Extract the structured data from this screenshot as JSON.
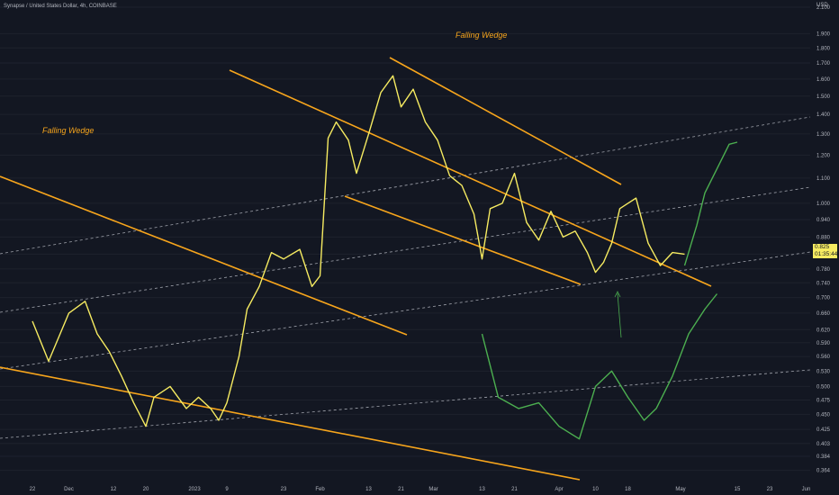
{
  "header": {
    "title": "Synapse / United States Dollar, 4h, COINBASE"
  },
  "price_tag": {
    "price": "0.825",
    "countdown": "01:35:44"
  },
  "annotations": {
    "wedge_1": "Falling Wedge",
    "wedge_2": "Falling Wedge"
  },
  "colors": {
    "background": "#131722",
    "price": "#f6eb61",
    "projection": "#4caf50",
    "wedge_lines": "#f7a51c",
    "dashed_channel": "#d1d4dc",
    "axis_text": "#b2b5be"
  },
  "chart_data": {
    "type": "line",
    "title": "Synapse / United States Dollar, 4h, COINBASE",
    "ylabel": "USD",
    "y_scale": "log",
    "ylim": [
      0.355,
      2.1
    ],
    "y_ticks": [
      "2.100",
      "1.900",
      "1.800",
      "1.700",
      "1.600",
      "1.500",
      "1.400",
      "1.300",
      "1.200",
      "1.100",
      "1.000",
      "0.940",
      "0.880",
      "0.825",
      "0.780",
      "0.740",
      "0.700",
      "0.660",
      "0.620",
      "0.590",
      "0.560",
      "0.530",
      "0.500",
      "0.475",
      "0.450",
      "0.425",
      "0.403",
      "0.384",
      "0.364"
    ],
    "x_ticks": [
      "22",
      "Dec",
      "12",
      "20",
      "2023",
      "9",
      "23",
      "Feb",
      "13",
      "21",
      "Mar",
      "13",
      "21",
      "Apr",
      "10",
      "18",
      "May",
      "15",
      "23",
      "Jun"
    ],
    "series": [
      {
        "style": "solid",
        "values": [
          [
            "2022-11-22",
            0.64
          ],
          [
            "2022-11-26",
            0.55
          ],
          [
            "2022-12-01",
            0.66
          ],
          [
            "2022-12-05",
            0.69
          ],
          [
            "2022-12-08",
            0.61
          ],
          [
            "2022-12-11",
            0.57
          ],
          [
            "2022-12-14",
            0.52
          ],
          [
            "2022-12-17",
            0.47
          ],
          [
            "2022-12-20",
            0.43
          ],
          [
            "2022-12-22",
            0.48
          ],
          [
            "2022-12-26",
            0.5
          ],
          [
            "2022-12-30",
            0.46
          ],
          [
            "2023-01-02",
            0.48
          ],
          [
            "2023-01-05",
            0.46
          ],
          [
            "2023-01-07",
            0.44
          ],
          [
            "2023-01-09",
            0.47
          ],
          [
            "2023-01-12",
            0.56
          ],
          [
            "2023-01-14",
            0.67
          ],
          [
            "2023-01-17",
            0.73
          ],
          [
            "2023-01-20",
            0.83
          ],
          [
            "2023-01-23",
            0.81
          ],
          [
            "2023-01-27",
            0.84
          ],
          [
            "2023-01-30",
            0.73
          ],
          [
            "2023-02-01",
            0.76
          ],
          [
            "2023-02-03",
            1.28
          ],
          [
            "2023-02-05",
            1.36
          ],
          [
            "2023-02-08",
            1.27
          ],
          [
            "2023-02-10",
            1.12
          ],
          [
            "2023-02-13",
            1.3
          ],
          [
            "2023-02-16",
            1.52
          ],
          [
            "2023-02-19",
            1.62
          ],
          [
            "2023-02-21",
            1.44
          ],
          [
            "2023-02-24",
            1.54
          ],
          [
            "2023-02-27",
            1.36
          ],
          [
            "2023-03-02",
            1.27
          ],
          [
            "2023-03-05",
            1.11
          ],
          [
            "2023-03-08",
            1.07
          ],
          [
            "2023-03-11",
            0.96
          ],
          [
            "2023-03-13",
            0.81
          ],
          [
            "2023-03-15",
            0.98
          ],
          [
            "2023-03-18",
            1.0
          ],
          [
            "2023-03-21",
            1.12
          ],
          [
            "2023-03-24",
            0.93
          ],
          [
            "2023-03-27",
            0.87
          ],
          [
            "2023-03-30",
            0.97
          ],
          [
            "2023-04-02",
            0.88
          ],
          [
            "2023-04-05",
            0.9
          ],
          [
            "2023-04-08",
            0.83
          ],
          [
            "2023-04-10",
            0.77
          ],
          [
            "2023-04-12",
            0.8
          ],
          [
            "2023-04-14",
            0.86
          ],
          [
            "2023-04-16",
            0.98
          ],
          [
            "2023-04-18",
            1.0
          ],
          [
            "2023-04-20",
            1.02
          ],
          [
            "2023-04-23",
            0.86
          ],
          [
            "2023-04-26",
            0.79
          ],
          [
            "2023-04-29",
            0.83
          ],
          [
            "2023-05-02",
            0.825
          ]
        ]
      },
      {
        "style": "projection",
        "values": [
          [
            "2023-05-02",
            0.79
          ],
          [
            "2023-05-05",
            0.92
          ],
          [
            "2023-05-07",
            1.04
          ],
          [
            "2023-05-10",
            1.14
          ],
          [
            "2023-05-13",
            1.25
          ],
          [
            "2023-05-15",
            1.26
          ]
        ]
      },
      {
        "style": "projection",
        "values": [
          [
            "2023-03-13",
            0.61
          ],
          [
            "2023-03-17",
            0.48
          ],
          [
            "2023-03-22",
            0.46
          ],
          [
            "2023-03-27",
            0.47
          ],
          [
            "2023-04-01",
            0.43
          ],
          [
            "2023-04-06",
            0.41
          ],
          [
            "2023-04-10",
            0.5
          ],
          [
            "2023-04-14",
            0.53
          ],
          [
            "2023-04-18",
            0.48
          ],
          [
            "2023-04-22",
            0.44
          ],
          [
            "2023-04-25",
            0.46
          ],
          [
            "2023-04-29",
            0.52
          ],
          [
            "2023-05-03",
            0.61
          ],
          [
            "2023-05-07",
            0.67
          ],
          [
            "2023-05-10",
            0.71
          ]
        ]
      }
    ]
  }
}
